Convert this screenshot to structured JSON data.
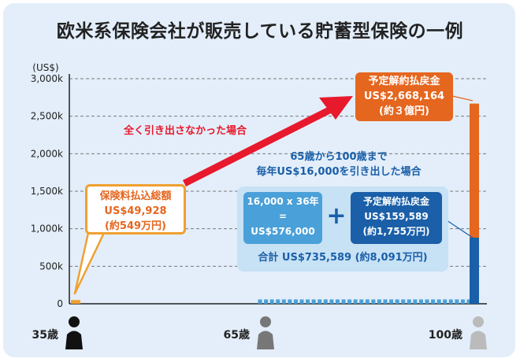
{
  "title": "欧米系保険会社が販売している貯蓄型保険の一例",
  "chart_data": {
    "type": "bar",
    "y_unit": "(US$)",
    "ylim": [
      0,
      3000
    ],
    "y_ticks": [
      "0",
      "500k",
      "1,000k",
      "1,500k",
      "2,000k",
      "2,500k",
      "3,000k"
    ],
    "ages": [
      "35歳",
      "65歳",
      "100歳"
    ],
    "bars": [
      {
        "age": 35,
        "value": 49.928
      },
      {
        "age": 100,
        "value": 2668.164,
        "withdraw_part": 159.589
      }
    ],
    "withdrawals": {
      "from_age": 65,
      "to_age": 100,
      "count": 36,
      "per_year": 16000
    },
    "grid": true,
    "annotations": {
      "premium": {
        "title": "保険料払込総額",
        "amount": "US$49,928",
        "yen": "(約549万円)"
      },
      "no_withdraw_label": "全く引き出さなかった場合",
      "refund": {
        "title": "予定解約払戻金",
        "amount": "US$2,668,164",
        "yen": "(約３億円)"
      },
      "withdraw_label_1": "65歳から100歳まで",
      "withdraw_label_2": "毎年US$16,000を引き出した場合",
      "calc": {
        "l1": "16,000 x 36年",
        "l2": "=",
        "l3": "US$576,000"
      },
      "plus": "+",
      "refund2": {
        "title": "予定解約払戻金",
        "amount": "US$159,589",
        "yen": "(約1,755万円)"
      },
      "total": "合計 US$735,589 (約8,091万円)"
    },
    "colors": {
      "orange": "#e5661f",
      "blue": "#1a5fa8",
      "stripe": "#4aa0d8",
      "premium": "#f0a030",
      "red": "#e8192c"
    }
  }
}
